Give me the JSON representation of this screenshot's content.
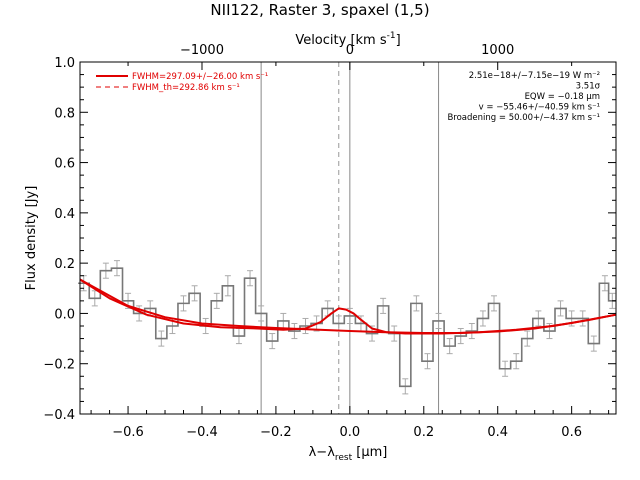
{
  "chart_data": {
    "type": "line",
    "title": "NII122, Raster 3, spaxel (1,5)",
    "xlabel": "λ−λrest [μm]",
    "xlabel_parts": {
      "main": "λ−λ",
      "sub": "rest",
      "unit": " [μm]"
    },
    "ylabel": "Flux density [Jy]",
    "top_xlabel": "Velocity [km s⁻¹]",
    "top_xlabel_parts": {
      "main": "Velocity [km s",
      "sup": "-1",
      "end": "]"
    },
    "xlim": [
      -0.73,
      0.72
    ],
    "ylim": [
      -0.4,
      1.0
    ],
    "xticks": [
      -0.6,
      -0.4,
      -0.2,
      0.0,
      0.2,
      0.4,
      0.6
    ],
    "xtick_labels": [
      "−0.6",
      "−0.4",
      "−0.2",
      "0.0",
      "0.2",
      "0.4",
      "0.6"
    ],
    "yticks": [
      -0.4,
      -0.2,
      0.0,
      0.2,
      0.4,
      0.6,
      0.8,
      1.0
    ],
    "ytick_labels": [
      "−0.4",
      "−0.2",
      "0.0",
      "0.2",
      "0.4",
      "0.6",
      "0.8",
      "1.0"
    ],
    "top_ticks_velocity": [
      -1000,
      0,
      1000
    ],
    "top_tick_labels": [
      "−1000",
      "0",
      "1000"
    ],
    "vertical_lines": [
      {
        "x": -0.24,
        "style": "solid",
        "color": "#888888"
      },
      {
        "x": -0.03,
        "style": "dashed",
        "color": "#999999"
      },
      {
        "x": 0.0,
        "style": "solid",
        "color": "#888888"
      },
      {
        "x": 0.24,
        "style": "solid",
        "color": "#888888"
      }
    ],
    "legend": {
      "placement": "top-left",
      "entries": [
        {
          "label": "FWHM=297.09+/−26.00 km s⁻¹",
          "style": "solid"
        },
        {
          "label": "FWHM_th=292.86 km s⁻¹",
          "style": "dashed"
        }
      ]
    },
    "annotations": [
      "2.51e−18+/−7.15e−19 W m⁻²",
      "3.51σ",
      "EQW = −0.18 μm",
      "v = −55.46+/−40.59 km s⁻¹",
      "Broadening = 50.00+/−4.37 km s⁻¹"
    ],
    "series": [
      {
        "kind": "data-histogram",
        "color": "#777777",
        "x": [
          -0.72,
          -0.69,
          -0.66,
          -0.63,
          -0.6,
          -0.57,
          -0.54,
          -0.51,
          -0.48,
          -0.45,
          -0.42,
          -0.39,
          -0.36,
          -0.33,
          -0.3,
          -0.27,
          -0.24,
          -0.21,
          -0.18,
          -0.15,
          -0.12,
          -0.09,
          -0.06,
          -0.03,
          0.0,
          0.03,
          0.06,
          0.09,
          0.12,
          0.15,
          0.18,
          0.21,
          0.24,
          0.27,
          0.3,
          0.33,
          0.36,
          0.39,
          0.42,
          0.45,
          0.48,
          0.51,
          0.54,
          0.57,
          0.6,
          0.63,
          0.66,
          0.69,
          0.71
        ],
        "y": [
          0.12,
          0.06,
          0.17,
          0.18,
          0.05,
          0.0,
          0.02,
          -0.1,
          -0.05,
          0.04,
          0.08,
          -0.05,
          0.05,
          0.11,
          -0.09,
          0.14,
          0.0,
          -0.11,
          -0.03,
          -0.07,
          -0.05,
          -0.04,
          0.02,
          -0.04,
          -0.01,
          -0.04,
          -0.08,
          0.03,
          -0.08,
          -0.29,
          0.04,
          -0.19,
          -0.03,
          -0.13,
          -0.09,
          -0.07,
          -0.02,
          0.04,
          -0.22,
          -0.19,
          -0.1,
          -0.02,
          -0.07,
          0.02,
          -0.02,
          -0.02,
          -0.12,
          0.12,
          0.05
        ],
        "yerr": [
          0.03,
          0.03,
          0.03,
          0.03,
          0.03,
          0.03,
          0.03,
          0.03,
          0.03,
          0.03,
          0.03,
          0.03,
          0.03,
          0.04,
          0.03,
          0.03,
          0.03,
          0.03,
          0.03,
          0.03,
          0.03,
          0.03,
          0.03,
          0.03,
          0.03,
          0.03,
          0.03,
          0.03,
          0.03,
          0.03,
          0.03,
          0.03,
          0.03,
          0.03,
          0.03,
          0.03,
          0.03,
          0.03,
          0.03,
          0.03,
          0.03,
          0.03,
          0.03,
          0.03,
          0.03,
          0.03,
          0.03,
          0.03,
          0.03
        ]
      },
      {
        "kind": "fit",
        "color": "#e00000",
        "x": [
          -0.73,
          -0.65,
          -0.55,
          -0.45,
          -0.35,
          -0.25,
          -0.18,
          -0.12,
          -0.08,
          -0.05,
          -0.03,
          -0.01,
          0.01,
          0.03,
          0.06,
          0.1,
          0.15,
          0.25,
          0.35,
          0.45,
          0.55,
          0.65,
          0.72
        ],
        "y": [
          0.135,
          0.06,
          -0.005,
          -0.04,
          -0.055,
          -0.06,
          -0.065,
          -0.06,
          -0.035,
          0.0,
          0.02,
          0.015,
          0.0,
          -0.025,
          -0.06,
          -0.075,
          -0.08,
          -0.08,
          -0.075,
          -0.065,
          -0.05,
          -0.025,
          -0.005
        ]
      },
      {
        "kind": "baseline",
        "color": "#e00000",
        "x": [
          -0.73,
          -0.6,
          -0.5,
          -0.4,
          -0.3,
          -0.2,
          -0.1,
          0.0,
          0.1,
          0.2,
          0.3,
          0.4,
          0.5,
          0.6,
          0.72
        ],
        "y": [
          0.135,
          0.03,
          -0.015,
          -0.04,
          -0.05,
          -0.058,
          -0.064,
          -0.07,
          -0.075,
          -0.078,
          -0.078,
          -0.072,
          -0.06,
          -0.038,
          -0.005
        ]
      }
    ]
  }
}
